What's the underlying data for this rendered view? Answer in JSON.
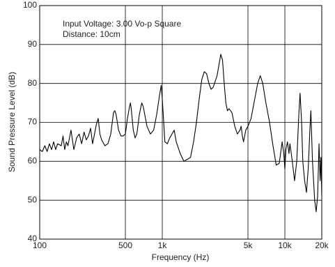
{
  "chart_data": {
    "type": "line",
    "x_label": "Frequency (Hz)",
    "y_label": "Sound Pressure Level (dB)",
    "annotations": [
      "Input Voltage: 3.00 Vo-p Square",
      "Distance: 10cm"
    ],
    "xscale": "log",
    "grid": true,
    "color": "#000000",
    "xlim": [
      100,
      20000
    ],
    "ylim": [
      40,
      100
    ],
    "xticks": [
      100,
      500,
      {
        "value": 1000,
        "label": "1k"
      },
      {
        "value": 5000,
        "label": "5k"
      },
      {
        "value": 10000,
        "label": "10k"
      },
      {
        "value": 20000,
        "label": "20k"
      }
    ],
    "yticks": [
      40,
      50,
      60,
      70,
      80,
      90,
      100
    ],
    "x": [
      100,
      105,
      110,
      115,
      120,
      125,
      130,
      135,
      140,
      150,
      155,
      160,
      165,
      170,
      180,
      190,
      200,
      210,
      220,
      230,
      240,
      250,
      260,
      270,
      280,
      290,
      300,
      310,
      320,
      340,
      360,
      380,
      400,
      410,
      420,
      440,
      460,
      480,
      500,
      520,
      540,
      550,
      560,
      580,
      600,
      620,
      650,
      680,
      700,
      750,
      800,
      850,
      900,
      950,
      980,
      1000,
      1050,
      1100,
      1150,
      1200,
      1250,
      1300,
      1400,
      1500,
      1600,
      1700,
      1800,
      1900,
      2000,
      2100,
      2200,
      2300,
      2400,
      2500,
      2600,
      2800,
      3000,
      3100,
      3200,
      3300,
      3400,
      3500,
      3700,
      3900,
      4100,
      4300,
      4400,
      4500,
      4600,
      4800,
      5000,
      5300,
      5600,
      6000,
      6300,
      6600,
      7000,
      7500,
      8000,
      8500,
      9000,
      9500,
      9800,
      10000,
      10200,
      10500,
      10800,
      11000,
      11500,
      12000,
      12500,
      13000,
      13300,
      13700,
      14000,
      14500,
      15000,
      15500,
      16000,
      16300,
      16800,
      17500,
      18000,
      18500,
      19000,
      19400,
      19700,
      20000
    ],
    "values": [
      63,
      62.5,
      64,
      62.5,
      64.5,
      63,
      65,
      63,
      64.5,
      64,
      66.5,
      63,
      65,
      64,
      68,
      63,
      66,
      67,
      64.5,
      67.5,
      65.5,
      66.5,
      68.5,
      64.5,
      67,
      69.5,
      71,
      67,
      65.5,
      64,
      64.5,
      67,
      72.5,
      73,
      72,
      68,
      66.5,
      66.5,
      67,
      71,
      74,
      75,
      73,
      68,
      66,
      67,
      72,
      75,
      74,
      69,
      67,
      68,
      72,
      77,
      79.5,
      76,
      65,
      64.5,
      66,
      67,
      68,
      65,
      62,
      60,
      60.5,
      61,
      65,
      70,
      76,
      81,
      83,
      82.5,
      80,
      78.5,
      79,
      82,
      87.5,
      86,
      80,
      75,
      73,
      73.5,
      72.5,
      69,
      67,
      68,
      69,
      66.5,
      65,
      68,
      69,
      71,
      75,
      80,
      82,
      80,
      75,
      70,
      64,
      59,
      59.5,
      65,
      62,
      58,
      63,
      65,
      62,
      64.5,
      60,
      55,
      60,
      72,
      77.5,
      70,
      60,
      55,
      52,
      58,
      68,
      73,
      60,
      50,
      47,
      51,
      64.5,
      55,
      61,
      51
    ]
  }
}
